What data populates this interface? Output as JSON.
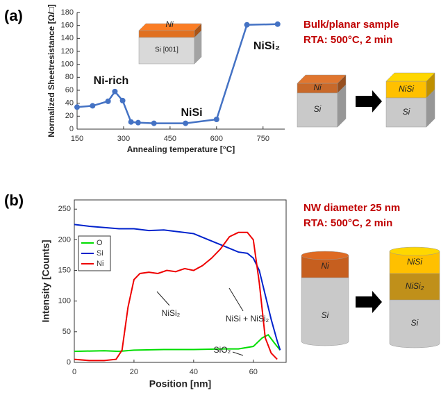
{
  "panel_labels": [
    "(a)",
    "(b)"
  ],
  "conditions": [
    [
      "Bulk/planar sample",
      "RTA: 500°C, 2 min"
    ],
    [
      "NW diameter 25 nm",
      "RTA: 500°C, 2 min"
    ]
  ],
  "diagram_labels": {
    "inset": [
      "Ni",
      "Si [001]"
    ],
    "bulk_before": [
      "Ni",
      "Si"
    ],
    "bulk_after": [
      "NiSi",
      "Si"
    ],
    "nw_before": [
      "Ni",
      "Si"
    ],
    "nw_after": [
      "NiSi",
      "NiSi₂",
      "Si"
    ]
  },
  "chart_data": [
    {
      "type": "line",
      "xlabel": "Annealing temperature [°C]",
      "ylabel": "Normalized Sheetresistance [Ω/□]",
      "x": [
        150,
        200,
        250,
        272,
        297,
        324,
        347,
        398,
        500,
        600,
        698,
        797
      ],
      "values": [
        34,
        36,
        43,
        58,
        44,
        11,
        10,
        9,
        9,
        15,
        161,
        162
      ],
      "color": "#4472c4",
      "xlim": [
        150,
        820
      ],
      "ylim": [
        0,
        180
      ],
      "xticks": [
        150,
        300,
        450,
        600,
        750
      ],
      "yticks": [
        0,
        20,
        40,
        60,
        80,
        100,
        120,
        140,
        160,
        180
      ],
      "annotations": [
        "Ni-rich",
        "NiSi",
        "NiSi₂"
      ]
    },
    {
      "type": "line",
      "xlabel": "Position [nm]",
      "ylabel": "Intensity [Counts]",
      "xlim": [
        0,
        71
      ],
      "ylim": [
        0,
        265
      ],
      "xticks": [
        0,
        20,
        40,
        60
      ],
      "yticks": [
        0,
        50,
        100,
        150,
        200,
        250
      ],
      "legend": "upper left",
      "series": [
        {
          "name": "O",
          "color": "#00dd00",
          "x": [
            0,
            10,
            15,
            20,
            30,
            40,
            50,
            55,
            60,
            63,
            65,
            67,
            69
          ],
          "values": [
            18,
            19,
            18,
            20,
            21,
            21,
            22,
            22,
            26,
            40,
            45,
            32,
            20
          ]
        },
        {
          "name": "Si",
          "color": "#0022cc",
          "x": [
            0,
            5,
            10,
            15,
            20,
            25,
            30,
            35,
            40,
            45,
            50,
            55,
            58,
            60,
            62,
            64,
            66,
            68,
            69
          ],
          "values": [
            225,
            222,
            220,
            218,
            218,
            215,
            216,
            213,
            210,
            200,
            190,
            180,
            178,
            170,
            150,
            110,
            70,
            35,
            20
          ]
        },
        {
          "name": "Ni",
          "color": "#ee0000",
          "x": [
            0,
            5,
            10,
            14,
            16,
            18,
            20,
            22,
            25,
            28,
            31,
            34,
            37,
            40,
            43,
            46,
            49,
            52,
            55,
            58,
            60,
            62,
            64,
            66,
            68
          ],
          "values": [
            5,
            3,
            3,
            5,
            20,
            90,
            135,
            145,
            147,
            145,
            150,
            148,
            153,
            150,
            158,
            170,
            185,
            205,
            212,
            212,
            200,
            130,
            40,
            15,
            5
          ]
        }
      ],
      "annotations": [
        "NiSi₂",
        "NiSi + NiSi₂",
        "SiO₂"
      ]
    }
  ]
}
